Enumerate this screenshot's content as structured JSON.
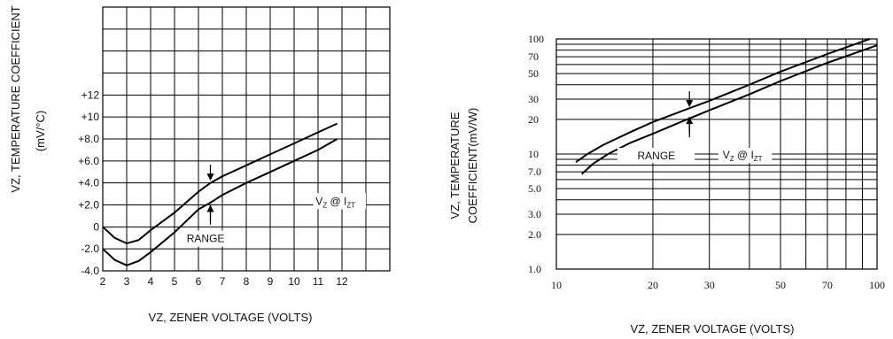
{
  "chart_data": [
    {
      "type": "line",
      "title": "",
      "xlabel": "VZ, ZENER VOLTAGE (VOLTS)",
      "ylabel": "VZ, TEMPERATURE COEFFICIENT",
      "ylabel_unit": "(mV/°C)",
      "xlim": [
        2,
        14
      ],
      "ylim": [
        -4,
        20
      ],
      "x_ticks": [
        "2",
        "3",
        "4",
        "5",
        "6",
        "7",
        "8",
        "9",
        "10",
        "11",
        "12"
      ],
      "y_ticks": [
        "-4.0",
        "-2.0",
        "0",
        "+2.0",
        "+4.0",
        "+6.0",
        "+8.0",
        "+10",
        "+12"
      ],
      "grid": true,
      "annotations": {
        "range": "RANGE",
        "condition": "V",
        "condition_sub1": "Z",
        "condition_at": "@ I",
        "condition_sub2": "ZT"
      },
      "series": [
        {
          "x": [
            2,
            2.5,
            3,
            3.5,
            4,
            5,
            6,
            6.5,
            7,
            8,
            9,
            10,
            11,
            11.8
          ],
          "y": [
            0,
            -1,
            -1.5,
            -1.2,
            -0.3,
            1.3,
            3.2,
            4.0,
            4.6,
            5.6,
            6.6,
            7.6,
            8.6,
            9.4
          ]
        },
        {
          "x": [
            2,
            2.5,
            3,
            3.5,
            4,
            5,
            6,
            6.5,
            7,
            8,
            9,
            10,
            11,
            11.8
          ],
          "y": [
            -2,
            -3,
            -3.5,
            -3.1,
            -2.3,
            -0.5,
            1.6,
            2.2,
            2.9,
            4.0,
            5.0,
            6.0,
            7.0,
            8.0
          ]
        }
      ]
    },
    {
      "type": "line",
      "title": "",
      "xlabel": "VZ, ZENER VOLTAGE (VOLTS)",
      "ylabel": "VZ, TEMPERATURE",
      "ylabel_line2": "COEFFICIENT(mV/W)",
      "x_scale": "log",
      "y_scale": "log",
      "xlim": [
        10,
        100
      ],
      "ylim": [
        1,
        100
      ],
      "x_ticks": [
        10,
        20,
        30,
        50,
        70,
        100
      ],
      "y_ticks": [
        1.0,
        2.0,
        3.0,
        5.0,
        7.0,
        10,
        20,
        30,
        50,
        70,
        100
      ],
      "x_tick_labels": [
        "10",
        "20",
        "30",
        "50",
        "70",
        "100"
      ],
      "y_tick_labels": [
        "1.0",
        "2.0",
        "3.0",
        "5.0",
        "7.0",
        "10",
        "20",
        "30",
        "50",
        "70",
        "100"
      ],
      "grid": true,
      "annotations": {
        "range": "RANGE",
        "condition": "V",
        "condition_sub1": "Z",
        "condition_at": "@ I",
        "condition_sub2": "ZT"
      },
      "series": [
        {
          "x": [
            11.5,
            12.5,
            14,
            17,
            20,
            25,
            30,
            40,
            50,
            70,
            95
          ],
          "y": [
            8.5,
            10,
            12,
            15.5,
            19,
            24,
            29,
            40,
            52,
            74,
            100
          ]
        },
        {
          "x": [
            12,
            13,
            14.5,
            17,
            20,
            25,
            30,
            40,
            50,
            70,
            100
          ],
          "y": [
            6.7,
            8.2,
            10,
            12.5,
            15,
            19.5,
            24,
            33,
            43,
            62,
            88
          ]
        }
      ]
    }
  ]
}
